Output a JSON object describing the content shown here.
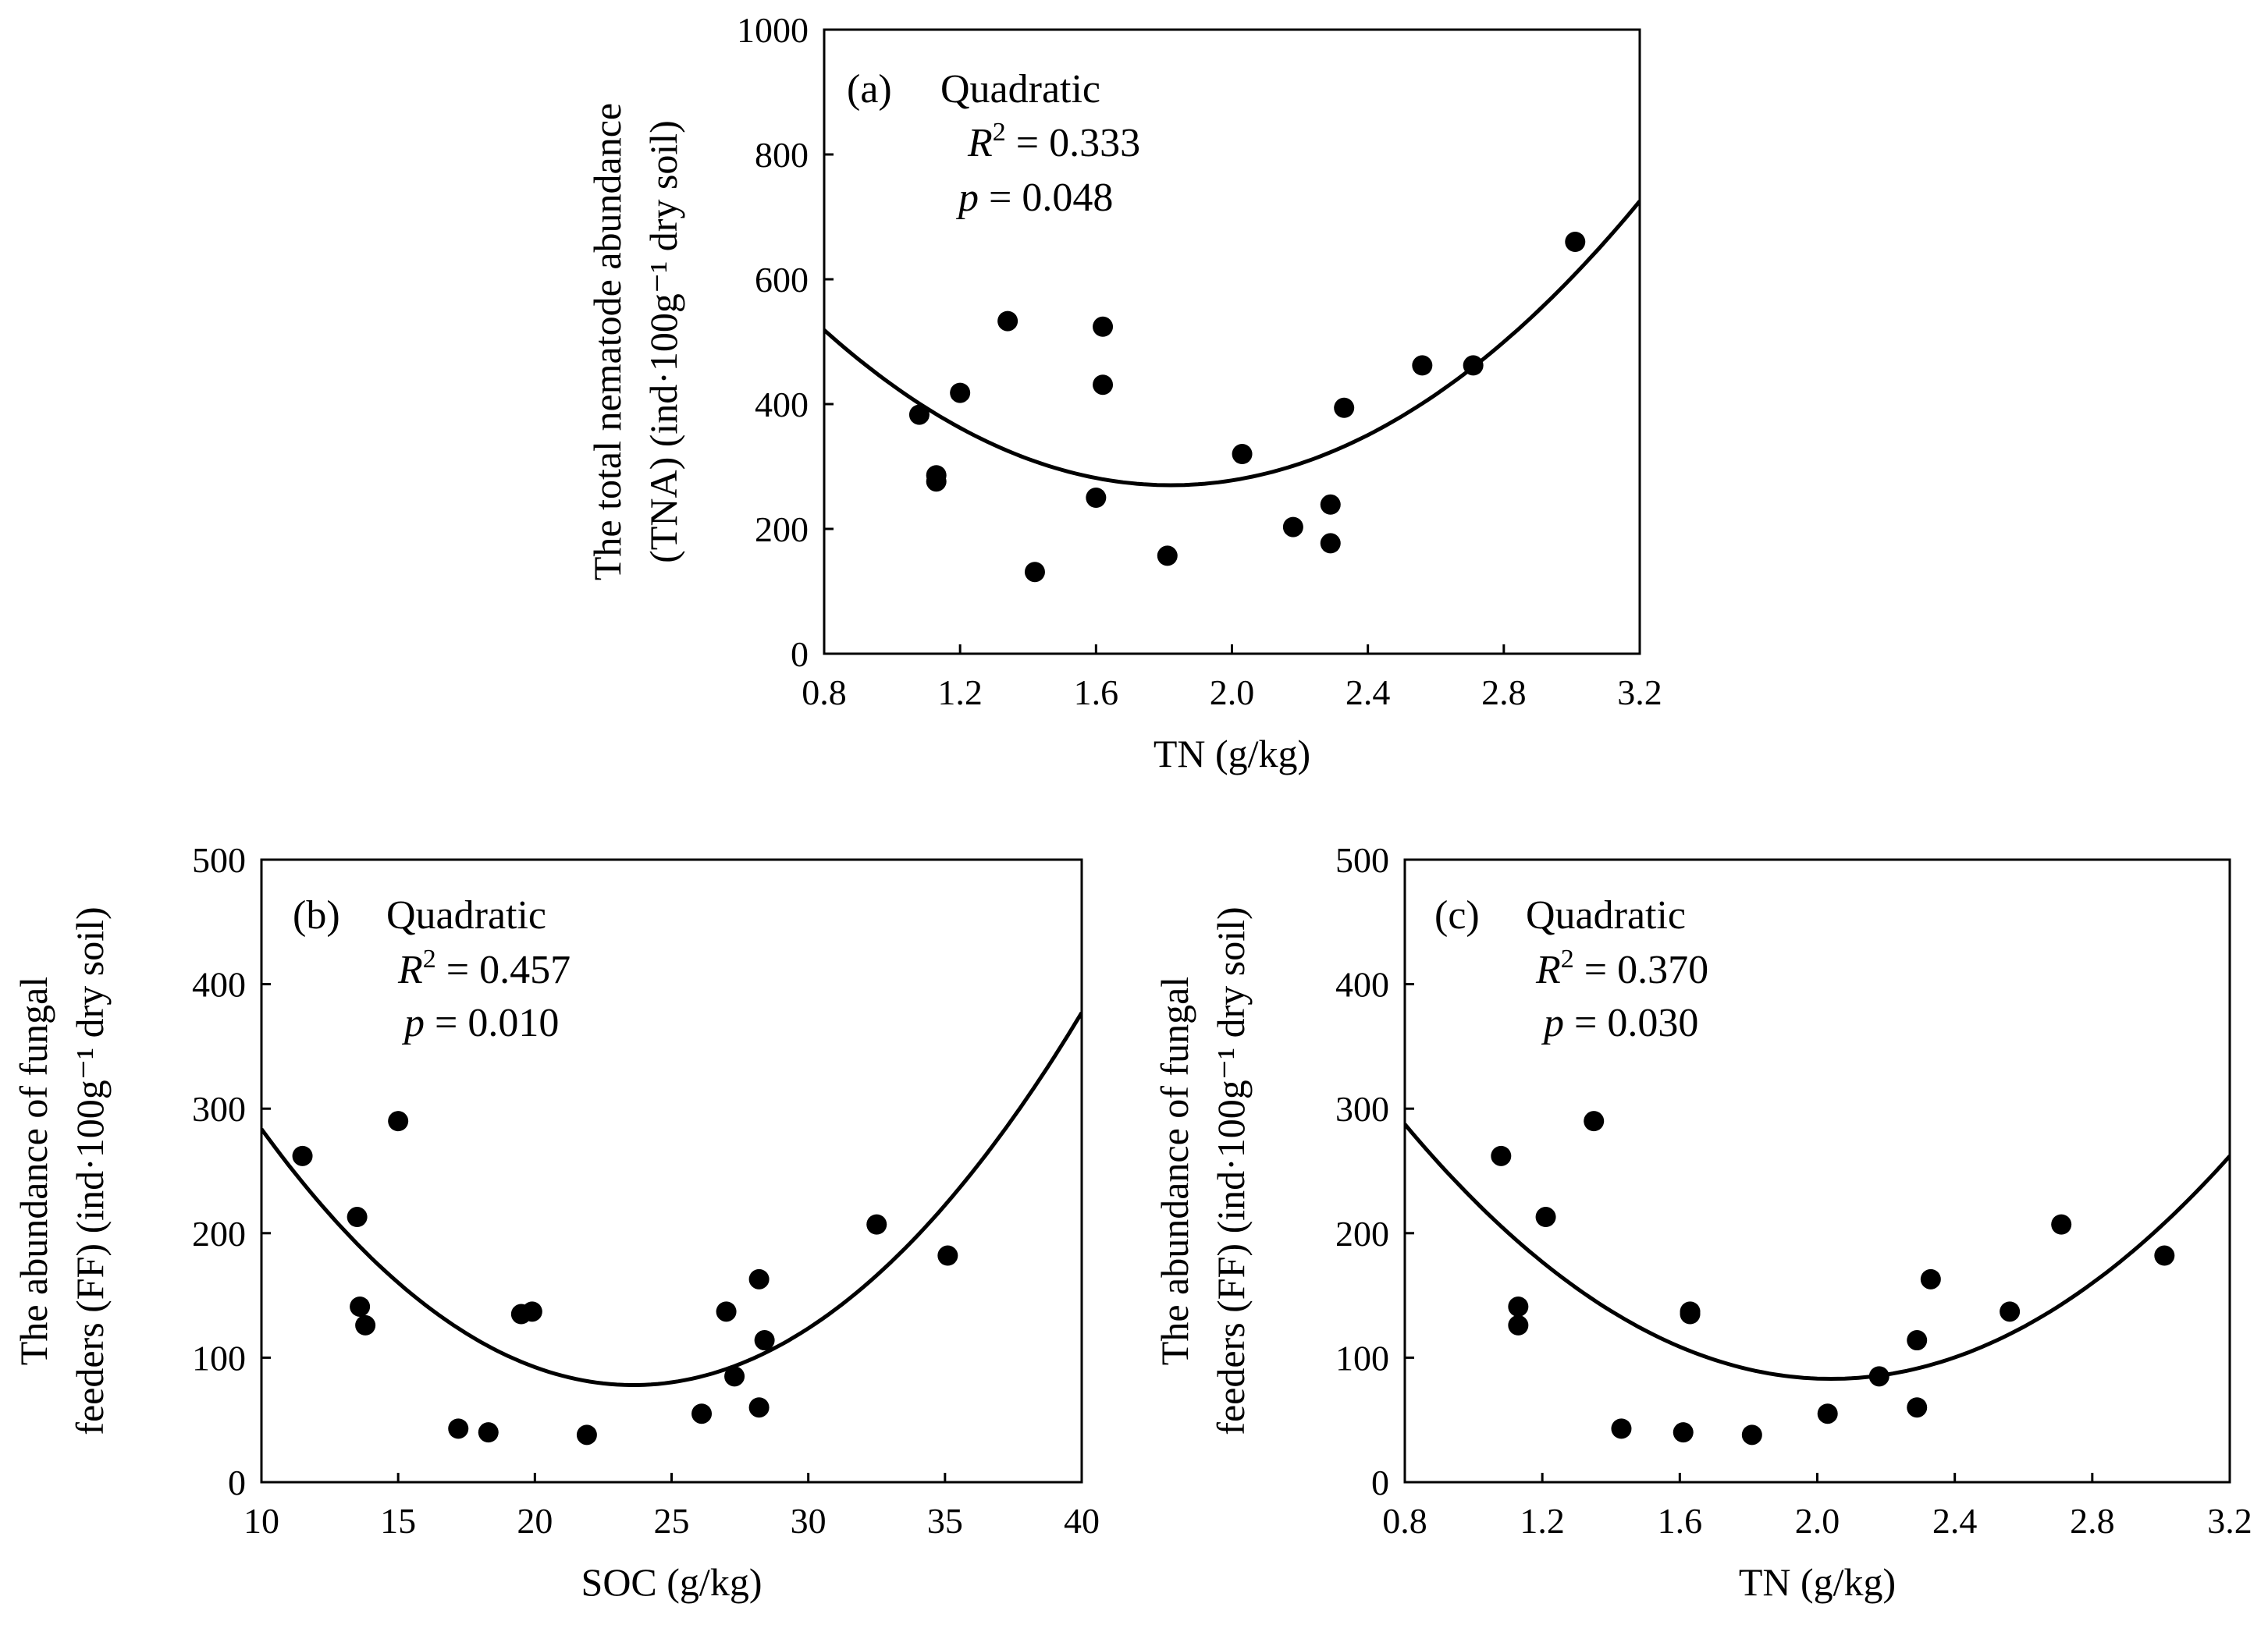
{
  "chart_data": [
    {
      "type": "scatter",
      "panel_label": "(a)",
      "model": "Quadratic",
      "r2_text": "= 0.333",
      "p_text": "= 0.048",
      "xlabel": "TN (g/kg)",
      "ylabel_lines": [
        "The total nematode abundance",
        "(TNA)  (ind·100g⁻¹ dry soil)"
      ],
      "xlim": [
        0.8,
        3.2
      ],
      "ylim": [
        0,
        1000
      ],
      "xticks": [
        "0.8",
        "1.2",
        "1.6",
        "2.0",
        "2.4",
        "2.8",
        "3.2"
      ],
      "yticks": [
        "0",
        "200",
        "400",
        "600",
        "800",
        "1000"
      ],
      "points": [
        [
          1.08,
          383
        ],
        [
          1.13,
          286
        ],
        [
          1.13,
          276
        ],
        [
          1.2,
          418
        ],
        [
          1.34,
          533
        ],
        [
          1.42,
          131
        ],
        [
          1.6,
          250
        ],
        [
          1.62,
          524
        ],
        [
          1.62,
          431
        ],
        [
          1.81,
          157
        ],
        [
          2.03,
          320
        ],
        [
          2.18,
          203
        ],
        [
          2.29,
          239
        ],
        [
          2.29,
          177
        ],
        [
          2.33,
          394
        ],
        [
          2.56,
          462
        ],
        [
          2.71,
          462
        ],
        [
          3.01,
          660
        ]
      ],
      "fit": {
        "vertex_x": 1.82,
        "vertex_y": 270,
        "a": 239
      }
    },
    {
      "type": "scatter",
      "panel_label": "(b)",
      "model": "Quadratic",
      "r2_text": "= 0.457",
      "p_text": "= 0.010",
      "xlabel": "SOC (g/kg)",
      "ylabel_lines": [
        "The abundance of fungal",
        "feeders (FF) (ind·100g⁻¹ dry soil)"
      ],
      "xlim": [
        10,
        40
      ],
      "ylim": [
        0,
        500
      ],
      "xticks": [
        "10",
        "15",
        "20",
        "25",
        "30",
        "35",
        "40"
      ],
      "yticks": [
        "0",
        "100",
        "200",
        "300",
        "400",
        "500"
      ],
      "points": [
        [
          11.5,
          262
        ],
        [
          13.5,
          213
        ],
        [
          13.6,
          141
        ],
        [
          13.8,
          126
        ],
        [
          15.0,
          290
        ],
        [
          17.2,
          43
        ],
        [
          18.3,
          40
        ],
        [
          19.5,
          135
        ],
        [
          19.9,
          137
        ],
        [
          21.9,
          38
        ],
        [
          26.1,
          55
        ],
        [
          27.0,
          137
        ],
        [
          27.3,
          85
        ],
        [
          28.2,
          163
        ],
        [
          28.2,
          60
        ],
        [
          28.4,
          114
        ],
        [
          32.5,
          207
        ],
        [
          35.1,
          182
        ]
      ],
      "fit": {
        "vertex_x": 23.6,
        "vertex_y": 78,
        "a": 1.112
      }
    },
    {
      "type": "scatter",
      "panel_label": "(c)",
      "model": "Quadratic",
      "r2_text": "= 0.370",
      "p_text": "= 0.030",
      "xlabel": "TN (g/kg)",
      "ylabel_lines": [
        "The abundance of fungal",
        "feeders (FF) (ind·100g⁻¹ dry soil)"
      ],
      "xlim": [
        0.8,
        3.2
      ],
      "ylim": [
        0,
        500
      ],
      "xticks": [
        "0.8",
        "1.2",
        "1.6",
        "2.0",
        "2.4",
        "2.8",
        "3.2"
      ],
      "yticks": [
        "0",
        "100",
        "200",
        "300",
        "400",
        "500"
      ],
      "points": [
        [
          1.08,
          262
        ],
        [
          1.13,
          141
        ],
        [
          1.13,
          126
        ],
        [
          1.21,
          213
        ],
        [
          1.35,
          290
        ],
        [
          1.43,
          43
        ],
        [
          1.61,
          40
        ],
        [
          1.63,
          137
        ],
        [
          1.63,
          135
        ],
        [
          1.81,
          38
        ],
        [
          2.03,
          55
        ],
        [
          2.18,
          85
        ],
        [
          2.29,
          114
        ],
        [
          2.29,
          60
        ],
        [
          2.33,
          163
        ],
        [
          2.56,
          137
        ],
        [
          2.71,
          207
        ],
        [
          3.01,
          182
        ]
      ],
      "fit": {
        "vertex_x": 2.04,
        "vertex_y": 83,
        "a": 133
      }
    }
  ]
}
